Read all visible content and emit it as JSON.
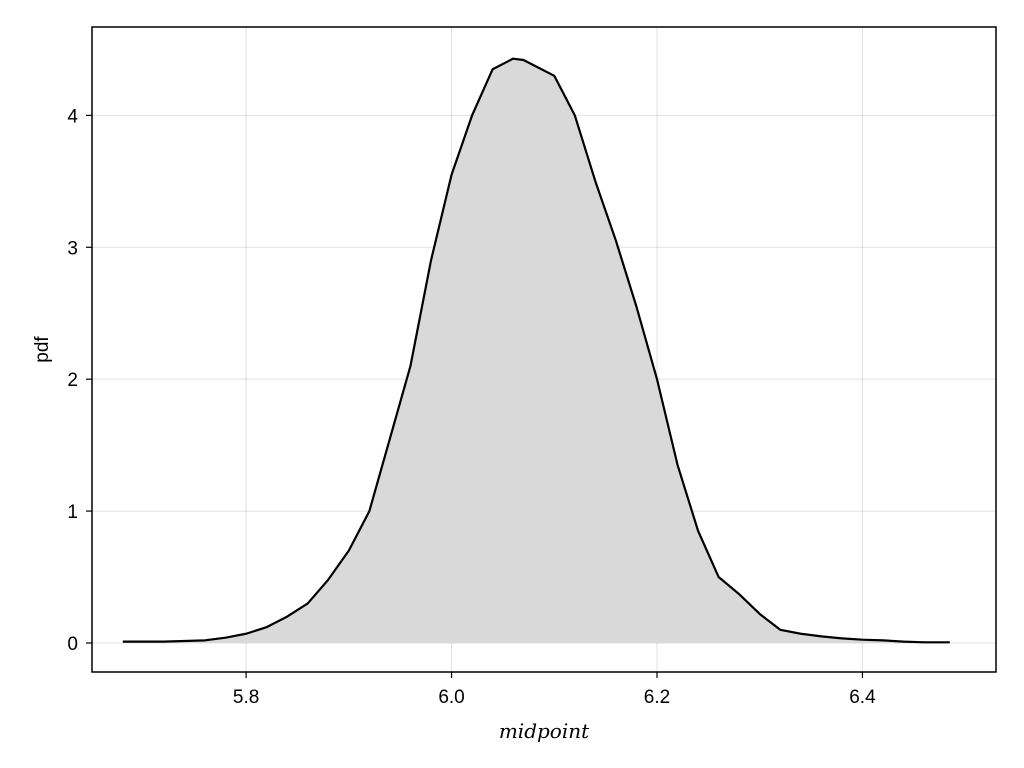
{
  "chart_data": {
    "type": "area",
    "title": "",
    "xlabel": "midpoint",
    "ylabel": "pdf",
    "xlim": [
      5.65,
      6.53
    ],
    "ylim": [
      -0.22,
      4.67
    ],
    "xticks": [
      5.8,
      6.0,
      6.2,
      6.4
    ],
    "xtick_labels": [
      "5.8",
      "6.0",
      "6.2",
      "6.4"
    ],
    "yticks": [
      0,
      1,
      2,
      3,
      4
    ],
    "ytick_labels": [
      "0",
      "1",
      "2",
      "3",
      "4"
    ],
    "grid": true,
    "legend": "none",
    "colors": {
      "fill": "#d9d9d9",
      "line": "#000000",
      "grid": "#e0e0e0"
    },
    "series": [
      {
        "x": [
          5.68,
          5.7,
          5.72,
          5.74,
          5.76,
          5.78,
          5.8,
          5.82,
          5.84,
          5.86,
          5.88,
          5.9,
          5.92,
          5.94,
          5.96,
          5.98,
          6.0,
          6.02,
          6.04,
          6.06,
          6.07,
          6.08,
          6.1,
          6.12,
          6.14,
          6.16,
          6.18,
          6.2,
          6.22,
          6.24,
          6.26,
          6.28,
          6.3,
          6.32,
          6.34,
          6.36,
          6.38,
          6.4,
          6.42,
          6.44,
          6.46,
          6.485
        ],
        "y": [
          0.01,
          0.01,
          0.01,
          0.015,
          0.02,
          0.04,
          0.07,
          0.12,
          0.2,
          0.3,
          0.48,
          0.7,
          1.0,
          1.55,
          2.1,
          2.9,
          3.55,
          4.0,
          4.35,
          4.43,
          4.42,
          4.38,
          4.3,
          4.0,
          3.5,
          3.05,
          2.55,
          2.0,
          1.35,
          0.85,
          0.5,
          0.37,
          0.22,
          0.1,
          0.07,
          0.05,
          0.035,
          0.025,
          0.02,
          0.01,
          0.005,
          0.005
        ]
      }
    ]
  }
}
